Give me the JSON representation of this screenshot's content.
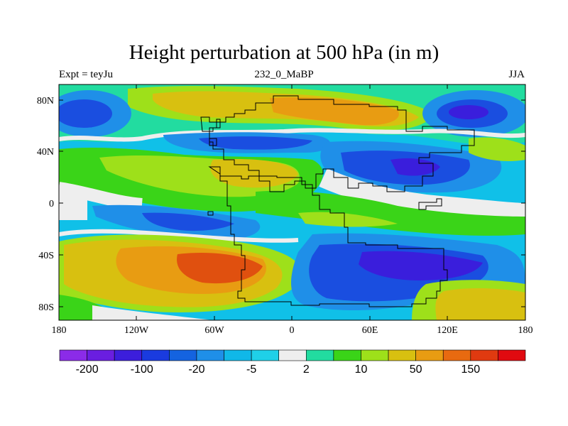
{
  "header": {
    "title": "Height perturbation at 500 hPa (in m)",
    "left": "Expt = teyJu",
    "center": "232_0_MaBP",
    "right": "JJA"
  },
  "axes": {
    "y_ticks": [
      "80N",
      "40N",
      "0",
      "40S",
      "80S"
    ],
    "x_ticks": [
      "180",
      "120W",
      "60W",
      "0",
      "60E",
      "120E",
      "180"
    ]
  },
  "colorbar": {
    "colors": [
      "#8b2be8",
      "#6a1ee0",
      "#3c1edc",
      "#1a3bdf",
      "#1463e0",
      "#1f8fe8",
      "#10b8e8",
      "#1fd0e8",
      "#eeeeee",
      "#22dca0",
      "#3ad418",
      "#9ee01a",
      "#d8c010",
      "#e89c12",
      "#e86a10",
      "#e03a10",
      "#e00a10"
    ],
    "labels": [
      "-200",
      "-100",
      "-20",
      "-5",
      "2",
      "10",
      "50",
      "150"
    ]
  },
  "map_colors": {
    "strong_neg": "#3a1edc",
    "neg": "#1a4ee0",
    "mid_neg": "#1f8fe8",
    "weak_neg": "#10c0e8",
    "near_zero": "#eeeeee",
    "weak_pos": "#3ad418",
    "pos": "#9ee01a",
    "mid_pos": "#d8c010",
    "strong_pos": "#e89c12",
    "max_pos": "#e0500f"
  }
}
